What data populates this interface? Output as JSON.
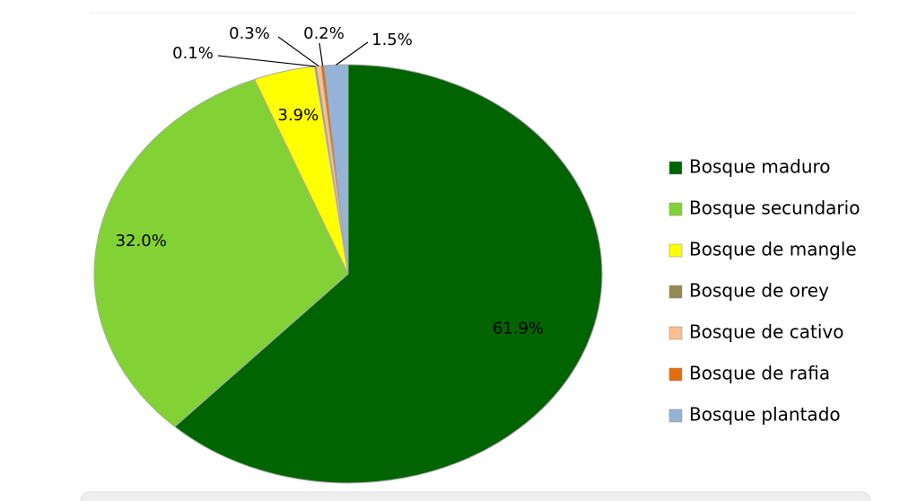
{
  "chart_data": {
    "type": "pie",
    "categories": [
      "Bosque maduro",
      "Bosque secundario",
      "Bosque de mangle",
      "Bosque de orey",
      "Bosque de cativo",
      "Bosque de rafia",
      "Bosque plantado"
    ],
    "values": [
      61.9,
      32.0,
      3.9,
      0.1,
      0.3,
      0.2,
      1.5
    ],
    "value_labels": [
      "61.9%",
      "32.0%",
      "3.9%",
      "0.1%",
      "0.3%",
      "0.2%",
      "1.5%"
    ],
    "colors": [
      "#006400",
      "#82d235",
      "#ffff00",
      "#948a54",
      "#fac090",
      "#e46c0a",
      "#95b3d7"
    ],
    "legend": "right"
  }
}
